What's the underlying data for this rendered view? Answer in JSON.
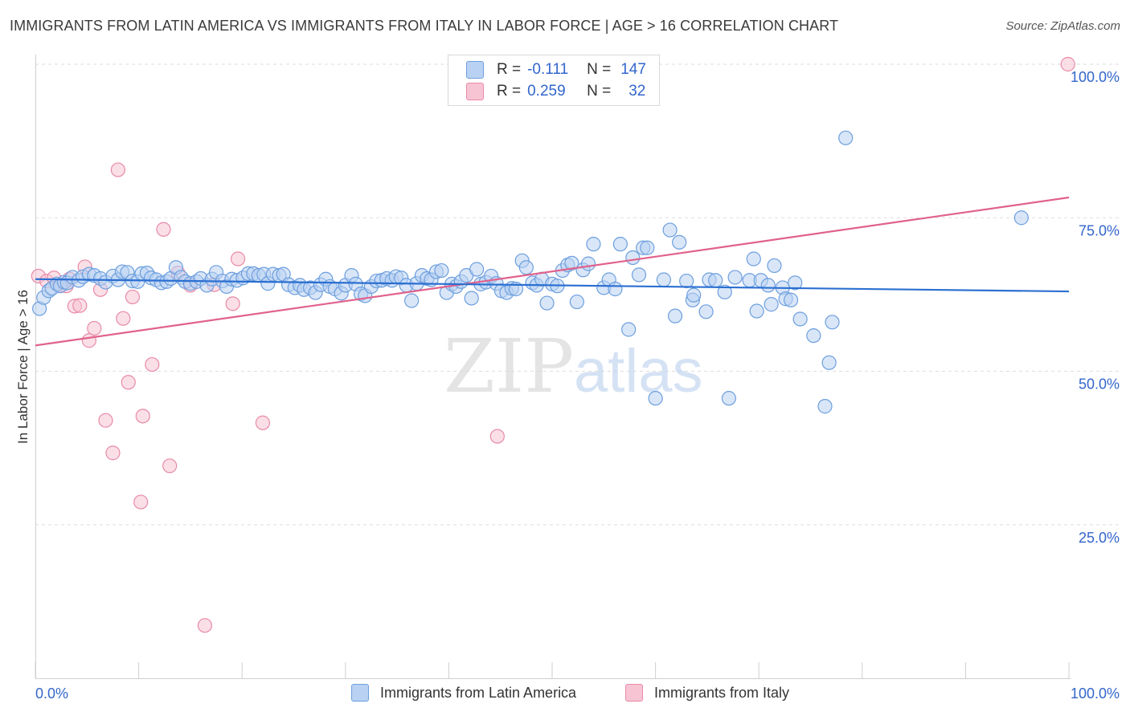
{
  "header": {
    "title": "IMMIGRANTS FROM LATIN AMERICA VS IMMIGRANTS FROM ITALY IN LABOR FORCE | AGE > 16 CORRELATION CHART",
    "source": "Source: ZipAtlas.com"
  },
  "watermark": {
    "zip": "ZIP",
    "atlas": "atlas"
  },
  "legend": {
    "r_label": "R =",
    "n_label": "N =",
    "series": [
      {
        "name": "Immigrants from Latin America",
        "r": "-0.111",
        "n": "147"
      },
      {
        "name": "Immigrants from Italy",
        "r": "0.259",
        "n": "32"
      }
    ]
  },
  "colors": {
    "blue_fill": "#b9d2f3",
    "blue_stroke": "#6d9fde",
    "blue_line": "#2b6fd1",
    "pink_fill": "#f7c4d3",
    "pink_stroke": "#e88aa8",
    "pink_line": "#e0628c",
    "tick_label": "#3366cc",
    "grid": "#dddddd"
  },
  "chart_data": {
    "type": "scatter",
    "title": "IMMIGRANTS FROM LATIN AMERICA VS IMMIGRANTS FROM ITALY IN LABOR FORCE | AGE > 16 CORRELATION CHART",
    "xlabel": "",
    "ylabel": "In Labor Force | Age > 16",
    "xlim": [
      0,
      100
    ],
    "ylim": [
      0,
      100
    ],
    "x_tick_labels": [
      "0.0%",
      "100.0%"
    ],
    "y_ticks": [
      25,
      50,
      75,
      100
    ],
    "y_tick_labels": [
      "25.0%",
      "50.0%",
      "75.0%",
      "100.0%"
    ],
    "grid": "horizontal dashed",
    "legend_position": "top-center",
    "series": [
      {
        "name": "Immigrants from Latin America",
        "r": -0.111,
        "n": 147,
        "trend": {
          "x0": 0,
          "y0": 65.0,
          "x1": 100,
          "y1": 63.0
        },
        "points": [
          [
            0.4,
            60.2
          ],
          [
            0.8,
            62.0
          ],
          [
            1.3,
            63.1
          ],
          [
            1.6,
            63.5
          ],
          [
            2.1,
            64.2
          ],
          [
            2.4,
            63.9
          ],
          [
            2.8,
            64.5
          ],
          [
            3.1,
            64.4
          ],
          [
            3.6,
            65.3
          ],
          [
            4.2,
            64.8
          ],
          [
            4.6,
            65.4
          ],
          [
            5.2,
            65.8
          ],
          [
            5.7,
            65.6
          ],
          [
            6.3,
            65.1
          ],
          [
            6.8,
            64.5
          ],
          [
            7.5,
            65.5
          ],
          [
            8.0,
            64.9
          ],
          [
            8.4,
            66.2
          ],
          [
            8.9,
            66.1
          ],
          [
            9.4,
            64.7
          ],
          [
            9.9,
            64.6
          ],
          [
            10.3,
            65.9
          ],
          [
            10.8,
            66.0
          ],
          [
            11.2,
            65.2
          ],
          [
            11.7,
            64.9
          ],
          [
            12.2,
            64.4
          ],
          [
            12.7,
            64.6
          ],
          [
            13.1,
            65.1
          ],
          [
            13.6,
            66.9
          ],
          [
            14.1,
            65.3
          ],
          [
            14.5,
            64.6
          ],
          [
            15.0,
            64.3
          ],
          [
            15.6,
            64.6
          ],
          [
            16.0,
            65.1
          ],
          [
            16.6,
            64.0
          ],
          [
            17.1,
            65.0
          ],
          [
            17.5,
            66.1
          ],
          [
            18.1,
            64.7
          ],
          [
            18.5,
            63.8
          ],
          [
            19.0,
            65.0
          ],
          [
            19.5,
            64.8
          ],
          [
            20.1,
            65.2
          ],
          [
            20.6,
            65.9
          ],
          [
            21.1,
            65.9
          ],
          [
            21.6,
            65.6
          ],
          [
            22.1,
            65.8
          ],
          [
            22.5,
            64.3
          ],
          [
            23.0,
            65.8
          ],
          [
            23.6,
            65.6
          ],
          [
            24.0,
            65.8
          ],
          [
            24.5,
            64.1
          ],
          [
            25.1,
            63.6
          ],
          [
            25.6,
            64.0
          ],
          [
            26.0,
            63.3
          ],
          [
            26.6,
            63.6
          ],
          [
            27.1,
            62.8
          ],
          [
            27.6,
            64.1
          ],
          [
            28.1,
            65.0
          ],
          [
            28.5,
            63.8
          ],
          [
            29.0,
            63.4
          ],
          [
            29.6,
            62.7
          ],
          [
            30.0,
            64.0
          ],
          [
            30.6,
            65.6
          ],
          [
            31.0,
            64.2
          ],
          [
            31.5,
            62.6
          ],
          [
            31.9,
            62.3
          ],
          [
            32.5,
            63.8
          ],
          [
            33.0,
            64.7
          ],
          [
            33.5,
            64.8
          ],
          [
            34.0,
            65.1
          ],
          [
            34.5,
            64.8
          ],
          [
            34.9,
            65.4
          ],
          [
            35.4,
            65.2
          ],
          [
            35.9,
            64.0
          ],
          [
            36.4,
            61.5
          ],
          [
            36.9,
            64.3
          ],
          [
            37.4,
            65.6
          ],
          [
            37.9,
            65.1
          ],
          [
            38.3,
            64.9
          ],
          [
            38.8,
            66.2
          ],
          [
            39.3,
            66.4
          ],
          [
            39.8,
            62.8
          ],
          [
            40.3,
            64.2
          ],
          [
            40.7,
            63.8
          ],
          [
            41.2,
            64.6
          ],
          [
            41.7,
            65.6
          ],
          [
            42.2,
            61.9
          ],
          [
            42.7,
            66.6
          ],
          [
            43.1,
            64.2
          ],
          [
            43.6,
            64.5
          ],
          [
            44.1,
            65.5
          ],
          [
            44.6,
            64.3
          ],
          [
            45.1,
            63.1
          ],
          [
            45.6,
            62.8
          ],
          [
            46.1,
            63.5
          ],
          [
            46.5,
            63.4
          ],
          [
            47.1,
            68.0
          ],
          [
            47.5,
            66.9
          ],
          [
            48.1,
            64.4
          ],
          [
            48.5,
            64.0
          ],
          [
            49.0,
            65.0
          ],
          [
            49.5,
            61.1
          ],
          [
            50.0,
            64.2
          ],
          [
            50.5,
            63.9
          ],
          [
            51.0,
            66.4
          ],
          [
            51.5,
            67.3
          ],
          [
            51.9,
            67.6
          ],
          [
            52.4,
            61.3
          ],
          [
            53.0,
            66.5
          ],
          [
            53.5,
            67.5
          ],
          [
            54.0,
            70.7
          ],
          [
            55.0,
            63.6
          ],
          [
            55.5,
            64.9
          ],
          [
            56.1,
            63.4
          ],
          [
            56.6,
            70.7
          ],
          [
            57.4,
            56.8
          ],
          [
            57.8,
            68.5
          ],
          [
            58.4,
            65.7
          ],
          [
            58.8,
            70.1
          ],
          [
            59.2,
            70.1
          ],
          [
            60.0,
            45.6
          ],
          [
            60.8,
            64.9
          ],
          [
            61.4,
            73.0
          ],
          [
            61.9,
            59.0
          ],
          [
            62.3,
            71.0
          ],
          [
            63.0,
            64.7
          ],
          [
            63.6,
            61.6
          ],
          [
            63.7,
            62.4
          ],
          [
            64.9,
            59.7
          ],
          [
            65.2,
            64.9
          ],
          [
            65.8,
            64.8
          ],
          [
            66.7,
            62.9
          ],
          [
            67.1,
            45.6
          ],
          [
            67.7,
            65.3
          ],
          [
            69.1,
            64.8
          ],
          [
            69.5,
            68.3
          ],
          [
            69.8,
            59.8
          ],
          [
            70.2,
            64.8
          ],
          [
            70.9,
            64.0
          ],
          [
            71.2,
            60.9
          ],
          [
            71.5,
            67.2
          ],
          [
            72.3,
            63.6
          ],
          [
            72.6,
            61.8
          ],
          [
            73.1,
            61.6
          ],
          [
            73.5,
            64.4
          ],
          [
            74.0,
            58.5
          ],
          [
            75.3,
            55.8
          ],
          [
            76.4,
            44.3
          ],
          [
            76.8,
            51.4
          ],
          [
            77.1,
            58.0
          ],
          [
            78.4,
            88.0
          ],
          [
            95.4,
            75.0
          ]
        ]
      },
      {
        "name": "Immigrants from Italy",
        "r": 0.259,
        "n": 32,
        "trend": {
          "x0": 0,
          "y0": 54.2,
          "x1": 100,
          "y1": 78.3
        },
        "points": [
          [
            0.3,
            65.5
          ],
          [
            1.1,
            64.7
          ],
          [
            1.8,
            65.2
          ],
          [
            2.5,
            64.0
          ],
          [
            3.0,
            63.9
          ],
          [
            3.3,
            65.0
          ],
          [
            3.8,
            60.6
          ],
          [
            4.3,
            60.7
          ],
          [
            4.8,
            67.0
          ],
          [
            5.2,
            55.0
          ],
          [
            5.7,
            57.0
          ],
          [
            6.3,
            63.3
          ],
          [
            6.8,
            42.0
          ],
          [
            7.5,
            36.7
          ],
          [
            8.0,
            82.8
          ],
          [
            8.5,
            58.6
          ],
          [
            9.0,
            48.2
          ],
          [
            9.4,
            62.1
          ],
          [
            10.2,
            28.7
          ],
          [
            10.4,
            42.7
          ],
          [
            11.3,
            51.1
          ],
          [
            12.4,
            73.1
          ],
          [
            13.0,
            34.6
          ],
          [
            13.8,
            66.0
          ],
          [
            15.0,
            64.0
          ],
          [
            16.4,
            8.6
          ],
          [
            17.3,
            64.1
          ],
          [
            19.1,
            61.0
          ],
          [
            19.6,
            68.3
          ],
          [
            22.0,
            41.6
          ],
          [
            44.7,
            39.4
          ],
          [
            99.9,
            100.0
          ]
        ]
      }
    ]
  },
  "bottom_legend": {
    "items": [
      "Immigrants from Latin America",
      "Immigrants from Italy"
    ]
  }
}
